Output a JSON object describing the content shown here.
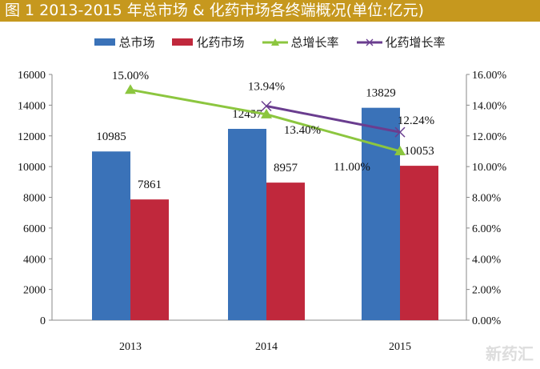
{
  "title": "图 1 2013-2015 年总市场 & 化药市场各终端概况(单位:亿元)",
  "watermark": "新药汇",
  "chart_data": {
    "type": "bar",
    "categories": [
      "2013",
      "2014",
      "2015"
    ],
    "series": [
      {
        "name": "总市场",
        "kind": "bar",
        "axis": "left",
        "color": "#3a72b8",
        "values": [
          10985,
          12457,
          13829
        ],
        "labels": [
          "10985",
          "12457",
          "13829"
        ]
      },
      {
        "name": "化药市场",
        "kind": "bar",
        "axis": "left",
        "color": "#c0283c",
        "values": [
          7861,
          8957,
          10053
        ],
        "labels": [
          "7861",
          "8957",
          "10053"
        ]
      },
      {
        "name": "总增长率",
        "kind": "line",
        "marker": "triangle",
        "axis": "right",
        "color": "#8cc63f",
        "values": [
          15.0,
          13.4,
          11.0
        ],
        "labels": [
          "15.00%",
          "13.40%",
          "11.00%"
        ]
      },
      {
        "name": "化药增长率",
        "kind": "line",
        "marker": "x",
        "axis": "right",
        "color": "#6a3d8f",
        "values": [
          null,
          13.94,
          12.24
        ],
        "labels": [
          "",
          "13.94%",
          "12.24%"
        ]
      }
    ],
    "left_axis": {
      "range": [
        0,
        16000
      ],
      "ticks": [
        "0",
        "2000",
        "4000",
        "6000",
        "8000",
        "10000",
        "12000",
        "14000",
        "16000"
      ]
    },
    "right_axis": {
      "range": [
        0,
        16
      ],
      "ticks": [
        "0.00%",
        "2.00%",
        "4.00%",
        "6.00%",
        "8.00%",
        "10.00%",
        "12.00%",
        "14.00%",
        "16.00%"
      ]
    },
    "grid": false,
    "legend_position": "top"
  }
}
